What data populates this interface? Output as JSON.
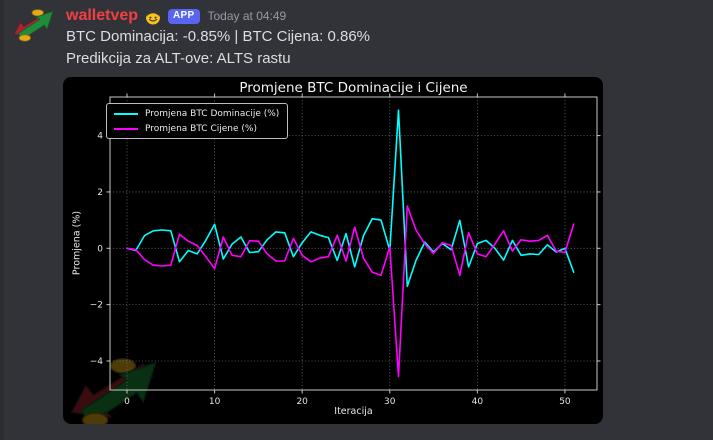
{
  "message": {
    "username": "walletvep",
    "badge": "APP",
    "timestamp": "Today at 04:49",
    "lines": [
      "BTC Dominacija: -0.85% | BTC Cijena: 0.86%",
      "Predikcija za ALT-ove: ALTS rastu"
    ]
  },
  "colors": {
    "page_background": "#313338",
    "chart_background": "#000000",
    "username": "#f23f43",
    "badge_background": "#5865f2",
    "message_text": "#dbdee1",
    "timestamp_text": "#949ba4",
    "dominance_line": "#00ffff",
    "price_line": "#ff00ff",
    "grid_line": "#6e6e6e",
    "axis_frame": "#c8c8c8"
  },
  "chart_data": {
    "type": "line",
    "title": "Promjene BTC Dominacije i Cijene",
    "xlabel": "Iteracija",
    "ylabel": "Promjena (%)",
    "xlim": [
      -1.94,
      53.66
    ],
    "ylim": [
      -5.03,
      5.37
    ],
    "xticks": [
      0,
      10,
      20,
      30,
      40,
      50
    ],
    "yticks": [
      -4,
      -2,
      0,
      2,
      4
    ],
    "grid": true,
    "grid_style": "dotted",
    "legend_position": "upper-left",
    "x": [
      0,
      1,
      2,
      3,
      4,
      5,
      6,
      7,
      8,
      9,
      10,
      11,
      12,
      13,
      14,
      15,
      16,
      17,
      18,
      19,
      20,
      21,
      22,
      23,
      24,
      25,
      26,
      27,
      28,
      29,
      30,
      31,
      32,
      33,
      34,
      35,
      36,
      37,
      38,
      39,
      40,
      41,
      42,
      43,
      44,
      45,
      46,
      47,
      48,
      49,
      50,
      51
    ],
    "series": [
      {
        "name": "Promjena BTC Dominacije (%)",
        "color": "#00ffff",
        "values": [
          0.0,
          -0.08,
          0.45,
          0.62,
          0.65,
          0.62,
          -0.48,
          -0.08,
          -0.2,
          0.28,
          0.85,
          -0.38,
          0.15,
          0.4,
          -0.15,
          -0.12,
          0.3,
          0.58,
          0.55,
          -0.3,
          0.2,
          0.58,
          0.46,
          0.38,
          -0.43,
          0.52,
          -0.66,
          0.45,
          1.05,
          1.0,
          -0.07,
          4.9,
          -1.35,
          -0.43,
          0.22,
          -0.13,
          0.17,
          -0.05,
          0.99,
          -0.66,
          0.17,
          0.28,
          0.0,
          -0.42,
          0.28,
          -0.25,
          -0.2,
          -0.22,
          0.12,
          -0.13,
          0.0,
          -0.85
        ]
      },
      {
        "name": "Promjena BTC Cijene (%)",
        "color": "#ff00ff",
        "values": [
          0.0,
          -0.05,
          -0.4,
          -0.6,
          -0.63,
          -0.6,
          0.5,
          0.25,
          0.1,
          -0.3,
          -0.72,
          0.4,
          -0.25,
          -0.3,
          0.27,
          0.25,
          -0.2,
          -0.45,
          -0.45,
          0.35,
          -0.25,
          -0.48,
          -0.35,
          -0.3,
          0.46,
          -0.45,
          0.75,
          -0.35,
          -0.85,
          -0.96,
          0.05,
          -4.55,
          1.5,
          0.65,
          0.15,
          -0.18,
          0.2,
          0.1,
          -0.96,
          0.55,
          -0.2,
          -0.3,
          0.15,
          0.62,
          -0.1,
          0.3,
          0.25,
          0.28,
          0.46,
          -0.1,
          -0.15,
          0.86
        ]
      }
    ]
  }
}
